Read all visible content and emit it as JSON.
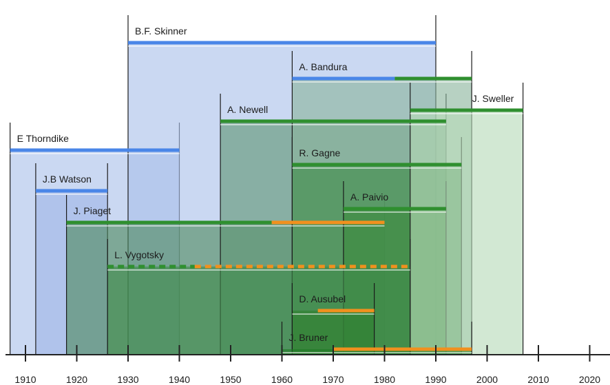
{
  "axis": {
    "ticks": [
      1910,
      1920,
      1930,
      1940,
      1950,
      1960,
      1970,
      1980,
      1990,
      2000,
      2010,
      2020
    ]
  },
  "theorists": [
    {
      "id": "thorndike",
      "label": "E Thorndike",
      "box": [
        1907,
        1940
      ],
      "line": [
        {
          "from": 1907,
          "to": 1940,
          "style": "blue"
        }
      ],
      "fill": "#a9c0ea"
    },
    {
      "id": "skinner",
      "label": "B.F. Skinner",
      "box": [
        1930,
        1990
      ],
      "line": [
        {
          "from": 1930,
          "to": 1990,
          "style": "blue"
        }
      ],
      "fill": "#a9c0ea"
    },
    {
      "id": "watson",
      "label": "J.B Watson",
      "box": [
        1912,
        1926
      ],
      "line": [
        {
          "from": 1912,
          "to": 1926,
          "style": "blue"
        }
      ],
      "fill": "#9fb7e6"
    },
    {
      "id": "piaget",
      "label": "J. Piaget",
      "box": [
        1918,
        1980
      ],
      "line": [
        {
          "from": 1918,
          "to": 1958,
          "style": "green"
        },
        {
          "from": 1958,
          "to": 1980,
          "style": "orange"
        }
      ],
      "fill": "#4f8a60"
    },
    {
      "id": "newell",
      "label": "A. Newell",
      "box": [
        1948,
        1992
      ],
      "line": [
        {
          "from": 1948,
          "to": 1992,
          "style": "green"
        }
      ],
      "fill": "#5f9674"
    },
    {
      "id": "bandura",
      "label": "A. Bandura",
      "box": [
        1962,
        1997
      ],
      "line": [
        {
          "from": 1962,
          "to": 1982,
          "style": "blue"
        },
        {
          "from": 1982,
          "to": 1997,
          "style": "green"
        }
      ],
      "fill": "#8ab59c"
    },
    {
      "id": "gagne",
      "label": "R. Gagne",
      "box": [
        1962,
        1995
      ],
      "line": [
        {
          "from": 1962,
          "to": 1995,
          "style": "green"
        }
      ],
      "fill": "#3e8a47"
    },
    {
      "id": "paivio",
      "label": "A. Paivio",
      "box": [
        1972,
        1992
      ],
      "line": [
        {
          "from": 1972,
          "to": 1992,
          "style": "green"
        }
      ],
      "fill": "#3c8a3e"
    },
    {
      "id": "sweller",
      "label": "J. Sweller",
      "box": [
        1985,
        2007
      ],
      "line": [
        {
          "from": 1985,
          "to": 2007,
          "style": "green"
        }
      ],
      "fill": "#b7dab8"
    },
    {
      "id": "vygotsky",
      "label": "L. Vygotsky",
      "box": [
        1926,
        1985
      ],
      "line": [
        {
          "from": 1926,
          "to": 1943,
          "style": "green-dash"
        },
        {
          "from": 1943,
          "to": 1985,
          "style": "orange-dash"
        }
      ],
      "fill": "#3f8a4a"
    },
    {
      "id": "ausubel",
      "label": "D. Ausubel",
      "box": [
        1962,
        1978
      ],
      "line": [
        {
          "from": 1967,
          "to": 1978,
          "style": "orange"
        }
      ],
      "fill": "#2f7f2f"
    },
    {
      "id": "bruner",
      "label": "J. Bruner",
      "box": [
        1960,
        1997
      ],
      "line": [
        {
          "from": 1970,
          "to": 1997,
          "style": "orange"
        }
      ],
      "fill": "#1f7a25"
    }
  ],
  "colors": {
    "blue": "#4a86e8",
    "green": "#2f8f2f",
    "orange": "#f0901e",
    "axis": "#222222"
  }
}
